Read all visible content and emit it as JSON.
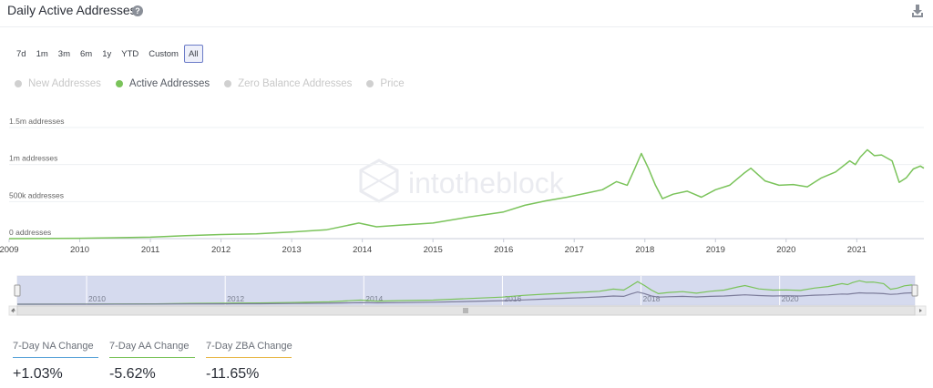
{
  "header": {
    "title": "Daily Active Addresses",
    "help_icon": "?"
  },
  "ranges": [
    "7d",
    "1m",
    "3m",
    "6m",
    "1y",
    "YTD",
    "Custom",
    "All"
  ],
  "active_range": "All",
  "legend": [
    {
      "label": "New Addresses",
      "active": false,
      "color": "#d0d0d0"
    },
    {
      "label": "Active Addresses",
      "active": true,
      "color": "#7ac35a"
    },
    {
      "label": "Zero Balance Addresses",
      "active": false,
      "color": "#d0d0d0"
    },
    {
      "label": "Price",
      "active": false,
      "color": "#d0d0d0"
    }
  ],
  "watermark": "intotheblock",
  "chart_data": {
    "type": "line",
    "title": "Daily Active Addresses",
    "y_ticks": [
      "1.5m addresses",
      "1m addresses",
      "500k addresses",
      "0 addresses"
    ],
    "x_ticks": [
      "2009",
      "2010",
      "2011",
      "2012",
      "2013",
      "2014",
      "2015",
      "2016",
      "2017",
      "2018",
      "2019",
      "2020",
      "2021"
    ],
    "ylim": [
      0,
      1500000
    ],
    "xlim": [
      2009.0,
      2021.95
    ],
    "series": [
      {
        "name": "Active Addresses",
        "color": "#7ac35a",
        "x": [
          2009.0,
          2010.0,
          2011.0,
          2011.5,
          2012.0,
          2012.5,
          2013.0,
          2013.5,
          2013.95,
          2014.2,
          2014.5,
          2015.0,
          2015.5,
          2016.0,
          2016.3,
          2016.6,
          2016.9,
          2017.2,
          2017.4,
          2017.6,
          2017.75,
          2017.85,
          2017.95,
          2018.05,
          2018.15,
          2018.25,
          2018.4,
          2018.6,
          2018.8,
          2019.0,
          2019.2,
          2019.4,
          2019.5,
          2019.7,
          2019.9,
          2020.1,
          2020.3,
          2020.5,
          2020.7,
          2020.9,
          2020.98,
          2021.05,
          2021.15,
          2021.25,
          2021.35,
          2021.5,
          2021.6,
          2021.7,
          2021.8,
          2021.9,
          2021.95
        ],
        "values": [
          0,
          5000,
          20000,
          40000,
          55000,
          65000,
          90000,
          120000,
          210000,
          160000,
          180000,
          210000,
          290000,
          360000,
          450000,
          510000,
          560000,
          620000,
          660000,
          770000,
          720000,
          930000,
          1150000,
          950000,
          720000,
          540000,
          600000,
          640000,
          560000,
          660000,
          720000,
          880000,
          950000,
          780000,
          720000,
          730000,
          700000,
          820000,
          900000,
          1050000,
          1000000,
          1100000,
          1200000,
          1120000,
          1130000,
          1050000,
          760000,
          820000,
          940000,
          980000,
          950000
        ]
      }
    ],
    "grid": true,
    "navigator_x_ticks": [
      "2010",
      "2012",
      "2014",
      "2016",
      "2018",
      "2020"
    ],
    "navigator_series": [
      {
        "color": "#7ac35a",
        "values": [
          0,
          5000,
          20000,
          40000,
          55000,
          65000,
          90000,
          120000,
          210000,
          160000,
          180000,
          210000,
          290000,
          360000,
          450000,
          510000,
          560000,
          620000,
          660000,
          770000,
          720000,
          930000,
          1150000,
          950000,
          720000,
          540000,
          600000,
          640000,
          560000,
          660000,
          720000,
          880000,
          950000,
          780000,
          720000,
          730000,
          700000,
          820000,
          900000,
          1050000,
          1000000,
          1100000,
          1200000,
          1120000,
          1130000,
          1050000,
          760000,
          820000,
          940000,
          980000,
          950000
        ]
      },
      {
        "color": "#7c7c9a",
        "values": [
          0,
          2000,
          8000,
          15000,
          20000,
          25000,
          35000,
          50000,
          80000,
          70000,
          80000,
          100000,
          140000,
          180000,
          220000,
          260000,
          300000,
          340000,
          370000,
          420000,
          400000,
          520000,
          620000,
          540000,
          420000,
          360000,
          380000,
          400000,
          370000,
          400000,
          420000,
          460000,
          480000,
          440000,
          420000,
          430000,
          420000,
          460000,
          480000,
          520000,
          510000,
          540000,
          580000,
          560000,
          560000,
          540000,
          500000,
          520000,
          560000,
          580000,
          570000
        ]
      }
    ]
  },
  "stats": [
    {
      "label": "7-Day NA Change",
      "value": "+1.03%",
      "color": "#5ba4d8"
    },
    {
      "label": "7-Day AA Change",
      "value": "-5.62%",
      "color": "#7ac35a"
    },
    {
      "label": "7-Day ZBA Change",
      "value": "-11.65%",
      "color": "#e8b84a"
    }
  ]
}
